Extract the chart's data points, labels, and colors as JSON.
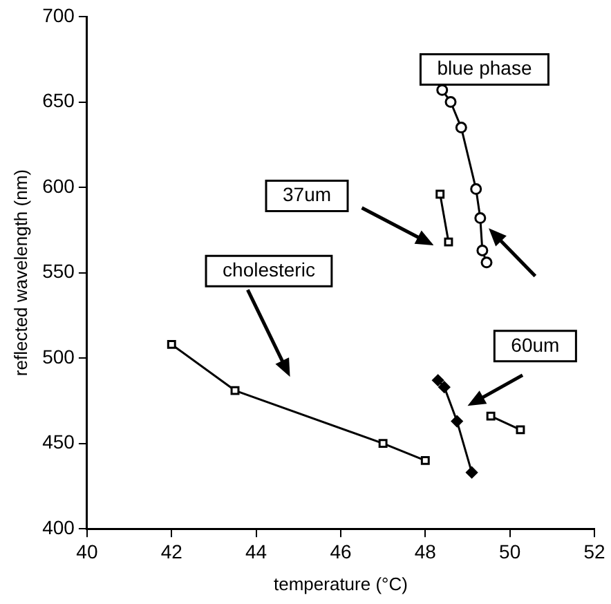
{
  "chart_data": {
    "type": "line",
    "xlabel": "temperature (°C)",
    "ylabel": "reflected wavelength (nm)",
    "xlim": [
      40,
      52
    ],
    "xticks": [
      40,
      42,
      44,
      46,
      48,
      50,
      52
    ],
    "ylim": [
      400,
      700
    ],
    "yticks": [
      400,
      450,
      500,
      550,
      600,
      650,
      700
    ],
    "grid": false,
    "legend": false,
    "line_style": "solid",
    "series": [
      {
        "color": "#000000",
        "marker": "square",
        "x": [
          42,
          43.5,
          47,
          48
        ],
        "values": [
          508,
          481,
          450,
          440
        ]
      },
      {
        "color": "#000000",
        "marker": "square",
        "x": [
          48.35,
          48.55
        ],
        "values": [
          596,
          568
        ]
      },
      {
        "color": "#000000",
        "marker": "circle",
        "x": [
          48.4,
          48.6,
          48.85,
          49.2,
          49.3,
          49.35,
          49.45
        ],
        "values": [
          657,
          650,
          635,
          599,
          582,
          563,
          556
        ]
      },
      {
        "color": "#000000",
        "marker": "diamond",
        "x": [
          48.3,
          48.45,
          48.75,
          49.1
        ],
        "values": [
          487,
          483,
          463,
          433
        ]
      },
      {
        "color": "#000000",
        "marker": "square",
        "x": [
          49.55,
          50.25
        ],
        "values": [
          466,
          458
        ]
      }
    ],
    "annotations": [
      "blue phase",
      "37um",
      "cholesteric",
      "60um"
    ]
  }
}
